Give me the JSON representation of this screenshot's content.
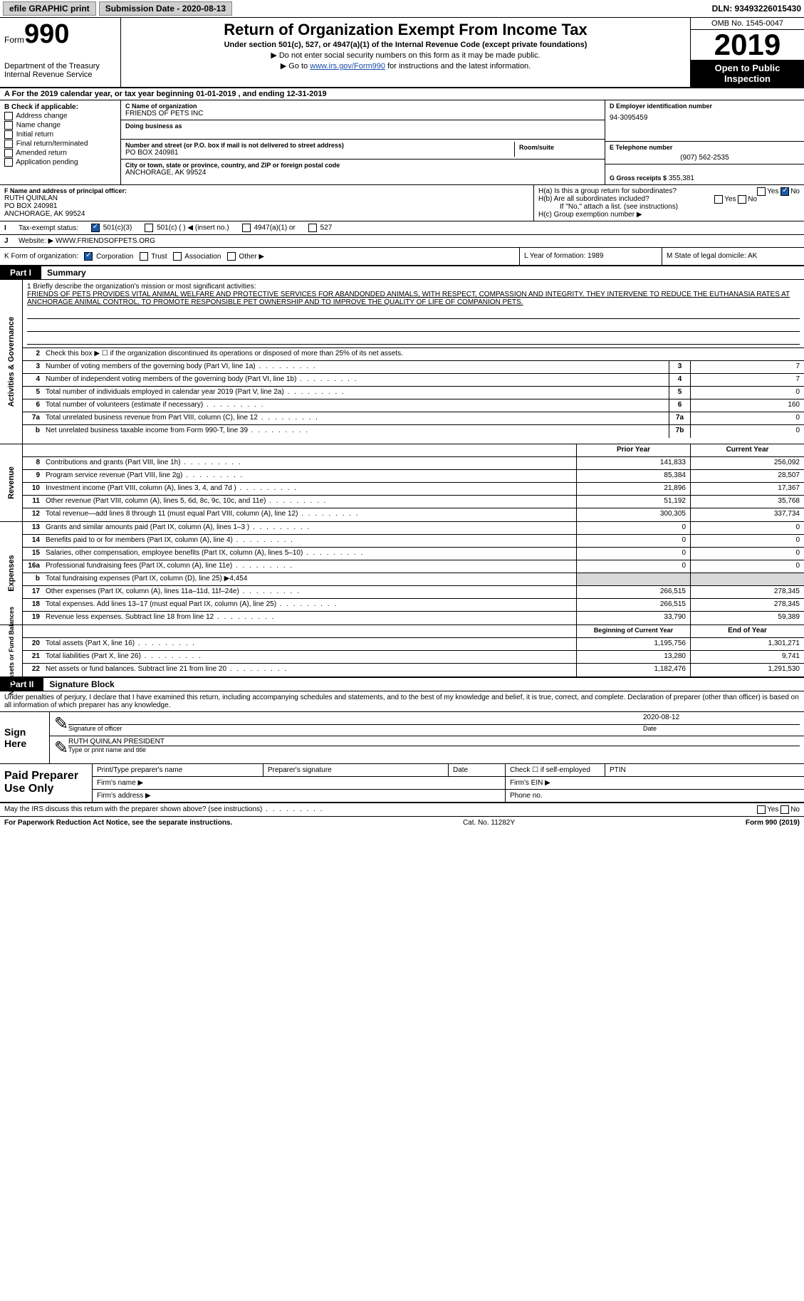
{
  "topbar": {
    "efile": "efile GRAPHIC print",
    "submission": "Submission Date - 2020-08-13",
    "dln": "DLN: 93493226015430"
  },
  "header": {
    "form_label": "Form",
    "form_num": "990",
    "dept": "Department of the Treasury\nInternal Revenue Service",
    "title": "Return of Organization Exempt From Income Tax",
    "sub1": "Under section 501(c), 527, or 4947(a)(1) of the Internal Revenue Code (except private foundations)",
    "sub2": "▶ Do not enter social security numbers on this form as it may be made public.",
    "sub3_pre": "▶ Go to ",
    "sub3_link": "www.irs.gov/Form990",
    "sub3_post": " for instructions and the latest information.",
    "omb": "OMB No. 1545-0047",
    "year": "2019",
    "open": "Open to Public Inspection"
  },
  "period": "A For the 2019 calendar year, or tax year beginning 01-01-2019   , and ending 12-31-2019",
  "checkb": {
    "label": "B Check if applicable:",
    "opts": [
      "Address change",
      "Name change",
      "Initial return",
      "Final return/terminated",
      "Amended return",
      "Application pending"
    ]
  },
  "orgc": {
    "name_hdr": "C Name of organization",
    "name": "FRIENDS OF PETS INC",
    "dba_hdr": "Doing business as",
    "dba": "",
    "addr_hdr": "Number and street (or P.O. box if mail is not delivered to street address)",
    "room_hdr": "Room/suite",
    "addr": "PO BOX 240981",
    "city_hdr": "City or town, state or province, country, and ZIP or foreign postal code",
    "city": "ANCHORAGE, AK   99524"
  },
  "cold": {
    "ein_hdr": "D Employer identification number",
    "ein": "94-3095459",
    "tel_hdr": "E Telephone number",
    "tel": "(907) 562-2535",
    "gross_hdr": "G Gross receipts $",
    "gross": "355,381"
  },
  "rowf": {
    "f_hdr": "F  Name and address of principal officer:",
    "f_name": "RUTH QUINLAN",
    "f_addr1": "PO BOX 240981",
    "f_addr2": "ANCHORAGE, AK  99524",
    "ha": "H(a)  Is this a group return for subordinates?",
    "hb": "H(b)  Are all subordinates included?",
    "hb_note": "If \"No,\" attach a list. (see instructions)",
    "hc": "H(c)  Group exemption number ▶"
  },
  "taxexempt": {
    "label": "Tax-exempt status:",
    "o1": "501(c)(3)",
    "o2": "501(c) (  ) ◀ (insert no.)",
    "o3": "4947(a)(1) or",
    "o4": "527"
  },
  "website": {
    "label": "Website: ▶",
    "value": "WWW.FRIENDSOFPETS.ORG"
  },
  "krow": {
    "k": "K Form of organization:",
    "opts": [
      "Corporation",
      "Trust",
      "Association",
      "Other ▶"
    ],
    "l": "L Year of formation: 1989",
    "m": "M State of legal domicile: AK"
  },
  "part1": {
    "hdr": "Part I",
    "title": "Summary"
  },
  "mission": {
    "lead": "1   Briefly describe the organization's mission or most significant activities:",
    "text": "FRIENDS OF PETS PROVIDES VITAL ANIMAL WELFARE AND PROTECTIVE SERVICES FOR ABANDONDED ANIMALS, WITH RESPECT, COMPASSION AND INTEGRITY. THEY INTERVENE TO REDUCE THE EUTHANASIA RATES AT ANCHORAGE ANIMAL CONTROL, TO PROMOTE RESPONSIBLE PET OWNERSHIP AND TO IMPROVE THE QUALITY OF LIFE OF COMPANION PETS."
  },
  "gov_lines": [
    {
      "n": "2",
      "d": "Check this box ▶ ☐  if the organization discontinued its operations or disposed of more than 25% of its net assets.",
      "b": "",
      "v": ""
    },
    {
      "n": "3",
      "d": "Number of voting members of the governing body (Part VI, line 1a)",
      "b": "3",
      "v": "7"
    },
    {
      "n": "4",
      "d": "Number of independent voting members of the governing body (Part VI, line 1b)",
      "b": "4",
      "v": "7"
    },
    {
      "n": "5",
      "d": "Total number of individuals employed in calendar year 2019 (Part V, line 2a)",
      "b": "5",
      "v": "0"
    },
    {
      "n": "6",
      "d": "Total number of volunteers (estimate if necessary)",
      "b": "6",
      "v": "160"
    },
    {
      "n": "7a",
      "d": "Total unrelated business revenue from Part VIII, column (C), line 12",
      "b": "7a",
      "v": "0"
    },
    {
      "n": "b",
      "d": "Net unrelated business taxable income from Form 990-T, line 39",
      "b": "7b",
      "v": "0"
    }
  ],
  "rev_hdr": {
    "c1": "Prior Year",
    "c2": "Current Year"
  },
  "rev_lines": [
    {
      "n": "8",
      "d": "Contributions and grants (Part VIII, line 1h)",
      "v1": "141,833",
      "v2": "256,092"
    },
    {
      "n": "9",
      "d": "Program service revenue (Part VIII, line 2g)",
      "v1": "85,384",
      "v2": "28,507"
    },
    {
      "n": "10",
      "d": "Investment income (Part VIII, column (A), lines 3, 4, and 7d )",
      "v1": "21,896",
      "v2": "17,367"
    },
    {
      "n": "11",
      "d": "Other revenue (Part VIII, column (A), lines 5, 6d, 8c, 9c, 10c, and 11e)",
      "v1": "51,192",
      "v2": "35,768"
    },
    {
      "n": "12",
      "d": "Total revenue—add lines 8 through 11 (must equal Part VIII, column (A), line 12)",
      "v1": "300,305",
      "v2": "337,734"
    }
  ],
  "exp_lines": [
    {
      "n": "13",
      "d": "Grants and similar amounts paid (Part IX, column (A), lines 1–3 )",
      "v1": "0",
      "v2": "0"
    },
    {
      "n": "14",
      "d": "Benefits paid to or for members (Part IX, column (A), line 4)",
      "v1": "0",
      "v2": "0"
    },
    {
      "n": "15",
      "d": "Salaries, other compensation, employee benefits (Part IX, column (A), lines 5–10)",
      "v1": "0",
      "v2": "0"
    },
    {
      "n": "16a",
      "d": "Professional fundraising fees (Part IX, column (A), line 11e)",
      "v1": "0",
      "v2": "0"
    },
    {
      "n": "b",
      "d": "Total fundraising expenses (Part IX, column (D), line 25) ▶4,454",
      "v1": "",
      "v2": "",
      "shade": true
    },
    {
      "n": "17",
      "d": "Other expenses (Part IX, column (A), lines 11a–11d, 11f–24e)",
      "v1": "266,515",
      "v2": "278,345"
    },
    {
      "n": "18",
      "d": "Total expenses. Add lines 13–17 (must equal Part IX, column (A), line 25)",
      "v1": "266,515",
      "v2": "278,345"
    },
    {
      "n": "19",
      "d": "Revenue less expenses. Subtract line 18 from line 12",
      "v1": "33,790",
      "v2": "59,389"
    }
  ],
  "net_hdr": {
    "c1": "Beginning of Current Year",
    "c2": "End of Year"
  },
  "net_lines": [
    {
      "n": "20",
      "d": "Total assets (Part X, line 16)",
      "v1": "1,195,756",
      "v2": "1,301,271"
    },
    {
      "n": "21",
      "d": "Total liabilities (Part X, line 26)",
      "v1": "13,280",
      "v2": "9,741"
    },
    {
      "n": "22",
      "d": "Net assets or fund balances. Subtract line 21 from line 20",
      "v1": "1,182,476",
      "v2": "1,291,530"
    }
  ],
  "part2": {
    "hdr": "Part II",
    "title": "Signature Block"
  },
  "perjury": "Under penalties of perjury, I declare that I have examined this return, including accompanying schedules and statements, and to the best of my knowledge and belief, it is true, correct, and complete. Declaration of preparer (other than officer) is based on all information of which preparer has any knowledge.",
  "sign": {
    "here": "Sign Here",
    "sig_officer": "Signature of officer",
    "date_label": "Date",
    "date": "2020-08-12",
    "name_title": "RUTH QUINLAN  PRESIDENT",
    "name_sub": "Type or print name and title"
  },
  "paid": {
    "label": "Paid Preparer Use Only",
    "h1": "Print/Type preparer's name",
    "h2": "Preparer's signature",
    "h3": "Date",
    "h4": "Check ☐ if self-employed",
    "h5": "PTIN",
    "firm_name": "Firm's name   ▶",
    "firm_ein": "Firm's EIN ▶",
    "firm_addr": "Firm's address ▶",
    "phone": "Phone no."
  },
  "footer": {
    "irs_discuss": "May the IRS discuss this return with the preparer shown above? (see instructions)",
    "paperwork": "For Paperwork Reduction Act Notice, see the separate instructions.",
    "cat": "Cat. No. 11282Y",
    "form": "Form 990 (2019)"
  },
  "yn": {
    "yes": "Yes",
    "no": "No"
  },
  "sides": {
    "gov": "Activities & Governance",
    "rev": "Revenue",
    "exp": "Expenses",
    "net": "Net Assets or Fund Balances"
  }
}
